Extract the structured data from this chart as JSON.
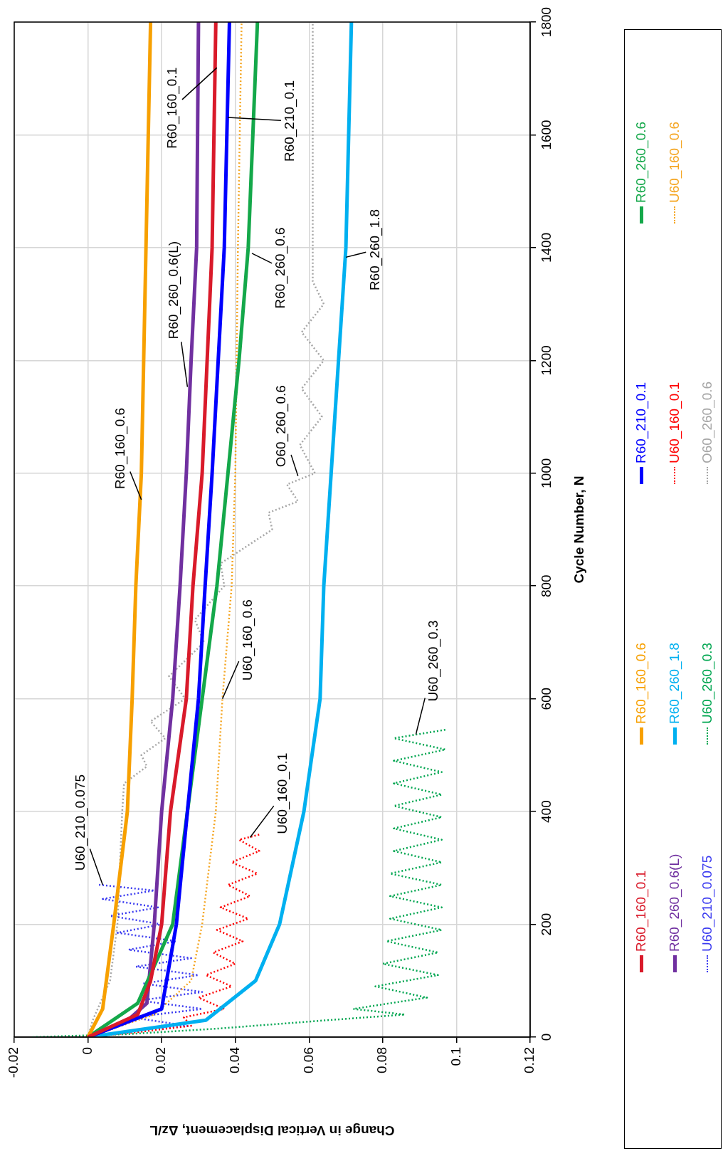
{
  "chart_data": {
    "type": "line",
    "xlabel": "Change in Vertical Displacement, Δz/L",
    "ylabel": "Cycle Number, N",
    "xlim": [
      -0.02,
      0.12
    ],
    "ylim": [
      0,
      1800
    ],
    "xticks": [
      -0.02,
      0,
      0.02,
      0.04,
      0.06,
      0.08,
      0.1,
      0.12
    ],
    "yticks": [
      0,
      200,
      400,
      600,
      800,
      1000,
      1200,
      1400,
      1600,
      1800
    ],
    "grid": true,
    "legend": "bottom",
    "marker": "none",
    "series": [
      {
        "name": "R60_160_0.1",
        "color": "#d91a2a",
        "line_style": "solid",
        "x": [
          0,
          0.0135,
          0.017,
          0.02,
          0.0224,
          0.0267,
          0.0285,
          0.031,
          0.0337,
          0.0347
        ],
        "values": [
          0,
          40,
          100,
          200,
          400,
          600,
          800,
          1000,
          1400,
          1800
        ]
      },
      {
        "name": "R60_160_0.6",
        "color": "#f7a000",
        "line_style": "solid",
        "x": [
          0,
          0.004,
          0.007,
          0.0107,
          0.012,
          0.013,
          0.0145,
          0.017
        ],
        "values": [
          0,
          50,
          200,
          400,
          600,
          800,
          1000,
          1800
        ]
      },
      {
        "name": "R60_210_0.1",
        "color": "#0000ff",
        "line_style": "solid",
        "x": [
          0,
          0.02,
          0.024,
          0.027,
          0.03,
          0.0318,
          0.0337,
          0.037,
          0.0384
        ],
        "values": [
          0,
          50,
          200,
          400,
          600,
          800,
          1000,
          1400,
          1800
        ]
      },
      {
        "name": "R60_260_0.6",
        "color": "#14a84a",
        "line_style": "solid",
        "x": [
          0,
          0.0135,
          0.023,
          0.027,
          0.031,
          0.035,
          0.038,
          0.041,
          0.0435,
          0.046
        ],
        "values": [
          0,
          60,
          200,
          400,
          600,
          800,
          1000,
          1200,
          1400,
          1800
        ]
      },
      {
        "name": "R60_260_0.6(L)",
        "color": "#7030a0",
        "line_style": "solid",
        "x": [
          0,
          0.01,
          0.016,
          0.018,
          0.02,
          0.023,
          0.025,
          0.0267,
          0.028,
          0.0295,
          0.03
        ],
        "values": [
          0,
          25,
          60,
          200,
          400,
          600,
          800,
          1000,
          1200,
          1400,
          1800
        ]
      },
      {
        "name": "R60_260_1.8",
        "color": "#00b0f0",
        "line_style": "solid",
        "x": [
          0,
          0.032,
          0.0455,
          0.052,
          0.0586,
          0.063,
          0.064,
          0.066,
          0.07,
          0.0715
        ],
        "values": [
          0,
          30,
          100,
          200,
          400,
          600,
          800,
          1000,
          1400,
          1800
        ]
      },
      {
        "name": "U60_160_0.1",
        "color": "#ff0000",
        "line_style": "dotted",
        "x": [
          0,
          0.015,
          0.028,
          0.026,
          0.037,
          0.03,
          0.039,
          0.032,
          0.04,
          0.034,
          0.042,
          0.035,
          0.0435,
          0.036,
          0.044,
          0.038,
          0.046,
          0.039,
          0.0465,
          0.041,
          0.047
        ],
        "values": [
          0,
          10,
          20,
          35,
          50,
          70,
          90,
          110,
          130,
          150,
          170,
          190,
          210,
          230,
          250,
          270,
          290,
          310,
          330,
          350,
          360
        ]
      },
      {
        "name": "U60_160_0.6",
        "color": "#f5a623",
        "line_style": "dotted",
        "x": [
          0,
          0.018,
          0.028,
          0.031,
          0.0347,
          0.0365,
          0.039,
          0.04,
          0.0407,
          0.0417
        ],
        "values": [
          0,
          40,
          100,
          200,
          400,
          600,
          800,
          1000,
          1400,
          1800
        ]
      },
      {
        "name": "U60_210_0.075",
        "color": "#3b3bf0",
        "line_style": "dotted",
        "x": [
          0,
          0.012,
          0.027,
          0.012,
          0.031,
          0.014,
          0.031,
          0.015,
          0.03,
          0.013,
          0.028,
          0.011,
          0.024,
          0.008,
          0.02,
          0.006,
          0.019,
          0.004,
          0.018,
          0.003
        ],
        "values": [
          0,
          10,
          20,
          35,
          50,
          65,
          80,
          95,
          110,
          125,
          140,
          155,
          170,
          185,
          200,
          215,
          230,
          245,
          260,
          270
        ]
      },
      {
        "name": "U60_260_0.3",
        "color": "#00a651",
        "line_style": "dotted",
        "x": [
          -0.015,
          0.01,
          0.035,
          0.065,
          0.086,
          0.072,
          0.092,
          0.078,
          0.095,
          0.08,
          0.095,
          0.081,
          0.096,
          0.082,
          0.096,
          0.082,
          0.096,
          0.082,
          0.096,
          0.083,
          0.096,
          0.083,
          0.096,
          0.083,
          0.096,
          0.083,
          0.096,
          0.083,
          0.097,
          0.083,
          0.097
        ],
        "values": [
          0,
          5,
          15,
          30,
          40,
          50,
          70,
          90,
          110,
          130,
          150,
          170,
          190,
          210,
          230,
          250,
          270,
          290,
          310,
          330,
          350,
          370,
          390,
          410,
          430,
          450,
          470,
          490,
          510,
          530,
          545
        ]
      },
      {
        "name": "O60_260_0.6",
        "color": "#a6a6a6",
        "line_style": "dotted",
        "x": [
          0,
          0.0013,
          0.006,
          0.008,
          0.0093,
          0.0098,
          0.016,
          0.0145,
          0.021,
          0.017,
          0.0264,
          0.022,
          0.0315,
          0.029,
          0.037,
          0.036,
          0.05,
          0.049,
          0.057,
          0.054,
          0.0616,
          0.0575,
          0.0635,
          0.058,
          0.064,
          0.058,
          0.064,
          0.061,
          0.061,
          0.061
        ],
        "values": [
          0,
          30,
          100,
          200,
          400,
          450,
          480,
          500,
          530,
          560,
          600,
          640,
          700,
          740,
          800,
          840,
          900,
          930,
          950,
          980,
          1000,
          1050,
          1100,
          1150,
          1200,
          1250,
          1300,
          1340,
          1400,
          1800
        ]
      }
    ],
    "annotations": [
      {
        "text": "R60_160_0.6",
        "x": 0.0145,
        "y": 953
      },
      {
        "text": "R60_260_0.6(L)",
        "x": 0.027,
        "y": 1153
      },
      {
        "text": "R60_160_0.1",
        "x": 0.035,
        "y": 1719
      },
      {
        "text": "R60_210_0.1",
        "x": 0.038,
        "y": 1631
      },
      {
        "text": "R60_260_0.6",
        "x": 0.0445,
        "y": 1390
      },
      {
        "text": "R60_260_1.8",
        "x": 0.07,
        "y": 1383
      },
      {
        "text": "O60_260_0.6",
        "x": 0.057,
        "y": 995
      },
      {
        "text": "U60_160_0.6",
        "x": 0.0365,
        "y": 600
      },
      {
        "text": "U60_160_0.1",
        "x": 0.044,
        "y": 354
      },
      {
        "text": "U60_260_0.3",
        "x": 0.089,
        "y": 537
      },
      {
        "text": "U60_210_0.075",
        "x": 0.004,
        "y": 270
      }
    ]
  }
}
